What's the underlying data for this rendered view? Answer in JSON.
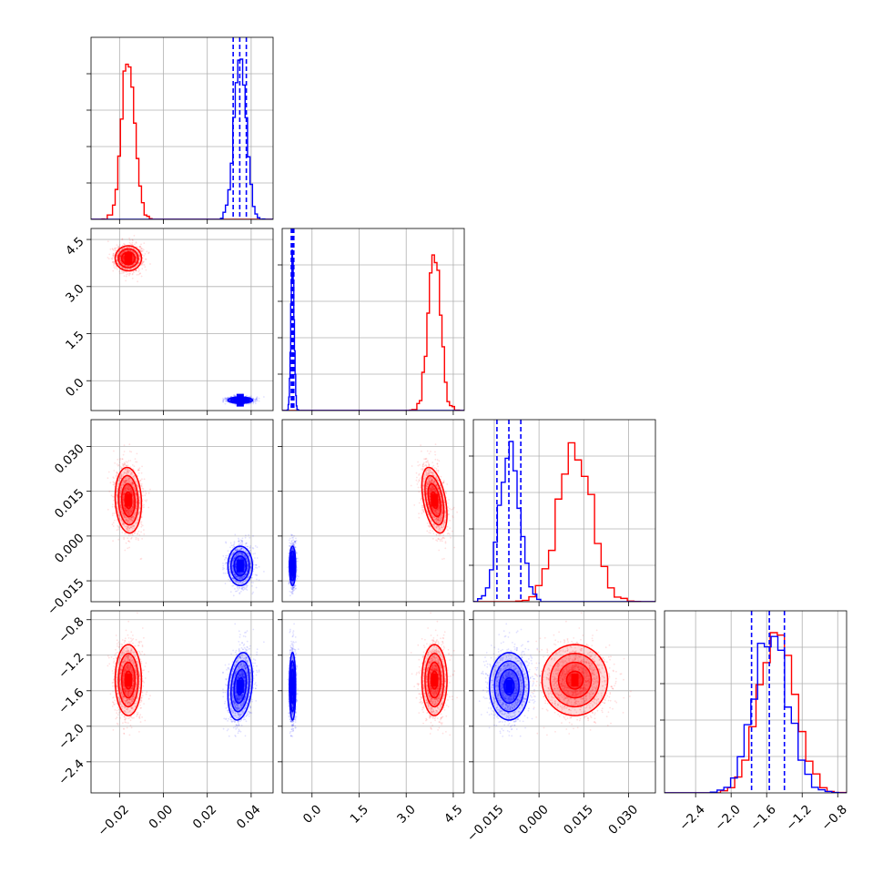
{
  "colors": {
    "red": "#ff0000",
    "blue": "#0000ff",
    "grid": "#b0b0b0"
  },
  "chart_data": {
    "type": "corner",
    "parameters": [
      {
        "range": [
          -0.033,
          0.05
        ],
        "ticks": [
          -0.02,
          0.0,
          0.02,
          0.04
        ],
        "tick_labels": [
          "−0.02",
          "0.00",
          "0.02",
          "0.04"
        ]
      },
      {
        "range": [
          -0.95,
          4.85
        ],
        "ticks": [
          0.0,
          1.5,
          3.0,
          4.5
        ],
        "tick_labels": [
          "0.0",
          "1.5",
          "3.0",
          "4.5"
        ]
      },
      {
        "range": [
          -0.022,
          0.039
        ],
        "ticks": [
          -0.015,
          0.0,
          0.015,
          0.03
        ],
        "tick_labels": [
          "−0.015",
          "0.000",
          "0.015",
          "0.030"
        ]
      },
      {
        "range": [
          -2.75,
          -0.7
        ],
        "ticks": [
          -2.4,
          -2.0,
          -1.6,
          -1.2,
          -0.8
        ],
        "tick_labels": [
          "−2.4",
          "−2.0",
          "−1.6",
          "−1.2",
          "−0.8"
        ]
      }
    ],
    "series": [
      {
        "color": "red",
        "mean": [
          -0.016,
          3.9,
          0.012,
          -1.48
        ],
        "sd": [
          0.003,
          0.2,
          0.0055,
          0.2
        ],
        "corr": {
          "1-0": 0.0,
          "2-0": -0.1,
          "2-1": -0.45,
          "3-0": 0.0,
          "3-1": 0.0,
          "3-2": 0.0
        },
        "credible_lines": null
      },
      {
        "color": "blue",
        "mean": [
          0.035,
          -0.62,
          -0.01,
          -1.55
        ],
        "sd": [
          0.0028,
          0.05,
          0.0033,
          0.19
        ],
        "corr": {
          "1-0": 0.0,
          "2-0": 0.0,
          "2-1": 0.0,
          "3-0": 0.25,
          "3-1": 0.0,
          "3-2": 0.0
        },
        "credible_lines": [
          [
            0.0318,
            0.0348,
            0.0378
          ],
          [
            -0.66,
            -0.62,
            -0.58
          ],
          [
            -0.0141,
            -0.0101,
            -0.0061
          ],
          [
            -1.77,
            -1.57,
            -1.4
          ]
        ]
      }
    ],
    "histogram_bins": 20,
    "contour_levels_sigma": [
      0.5,
      1.0,
      1.5,
      2.0
    ],
    "grid": true
  }
}
